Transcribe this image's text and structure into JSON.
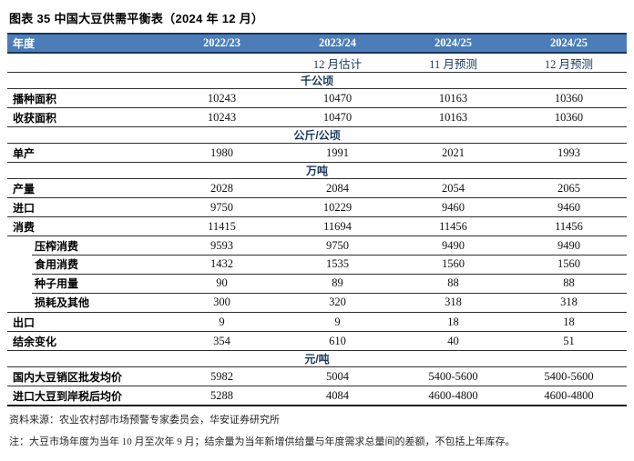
{
  "title": "图表 35 中国大豆供需平衡表（2024 年 12 月）",
  "colors": {
    "header_bg": "#4C7DB8",
    "navy": "#17375E",
    "line": "#2f2f2f",
    "ink": "#111111"
  },
  "table": {
    "header": {
      "label": "年度",
      "cols": [
        "2022/23",
        "2023/24",
        "2024/25",
        "2024/25"
      ]
    },
    "subheader": {
      "cols": [
        "",
        "12 月估计",
        "11 月预测",
        "12 月预测"
      ]
    },
    "rows": [
      {
        "type": "section",
        "label": "千公顷"
      },
      {
        "type": "data",
        "label": "播种面积",
        "values": [
          "10243",
          "10470",
          "10163",
          "10360"
        ]
      },
      {
        "type": "data",
        "label": "收获面积",
        "values": [
          "10243",
          "10470",
          "10163",
          "10360"
        ]
      },
      {
        "type": "section",
        "label": "公斤/公顷"
      },
      {
        "type": "data",
        "label": "单产",
        "values": [
          "1980",
          "1991",
          "2021",
          "1993"
        ]
      },
      {
        "type": "section",
        "label": "万吨"
      },
      {
        "type": "data",
        "label": "产量",
        "values": [
          "2028",
          "2084",
          "2054",
          "2065"
        ]
      },
      {
        "type": "data",
        "label": "进口",
        "values": [
          "9750",
          "10229",
          "9460",
          "9460"
        ]
      },
      {
        "type": "data",
        "label": "消费",
        "values": [
          "11415",
          "11694",
          "11456",
          "11456"
        ]
      },
      {
        "type": "sub",
        "label": "压榨消费",
        "values": [
          "9593",
          "9750",
          "9490",
          "9490"
        ]
      },
      {
        "type": "sub",
        "label": "食用消费",
        "values": [
          "1432",
          "1535",
          "1560",
          "1560"
        ]
      },
      {
        "type": "sub",
        "label": "种子用量",
        "values": [
          "90",
          "89",
          "88",
          "88"
        ]
      },
      {
        "type": "sub",
        "label": "损耗及其他",
        "values": [
          "300",
          "320",
          "318",
          "318"
        ]
      },
      {
        "type": "data",
        "label": "出口",
        "values": [
          "9",
          "9",
          "18",
          "18"
        ]
      },
      {
        "type": "data",
        "label": "结余变化",
        "values": [
          "354",
          "610",
          "40",
          "51"
        ]
      },
      {
        "type": "section",
        "label": "元/吨"
      },
      {
        "type": "data",
        "label": "国内大豆销区批发均价",
        "values": [
          "5982",
          "5004",
          "5400-5600",
          "5400-5600"
        ]
      },
      {
        "type": "data",
        "label": "进口大豆到岸税后均价",
        "values": [
          "5288",
          "4084",
          "4600-4800",
          "4600-4800"
        ]
      }
    ]
  },
  "footer": {
    "source": "资料来源：农业农村部市场预警专家委员会，华安证券研究所",
    "note": "注：大豆市场年度为当年 10 月至次年 9 月；结余量为当年新增供给量与年度需求总量间的差额，不包括上年库存。"
  }
}
